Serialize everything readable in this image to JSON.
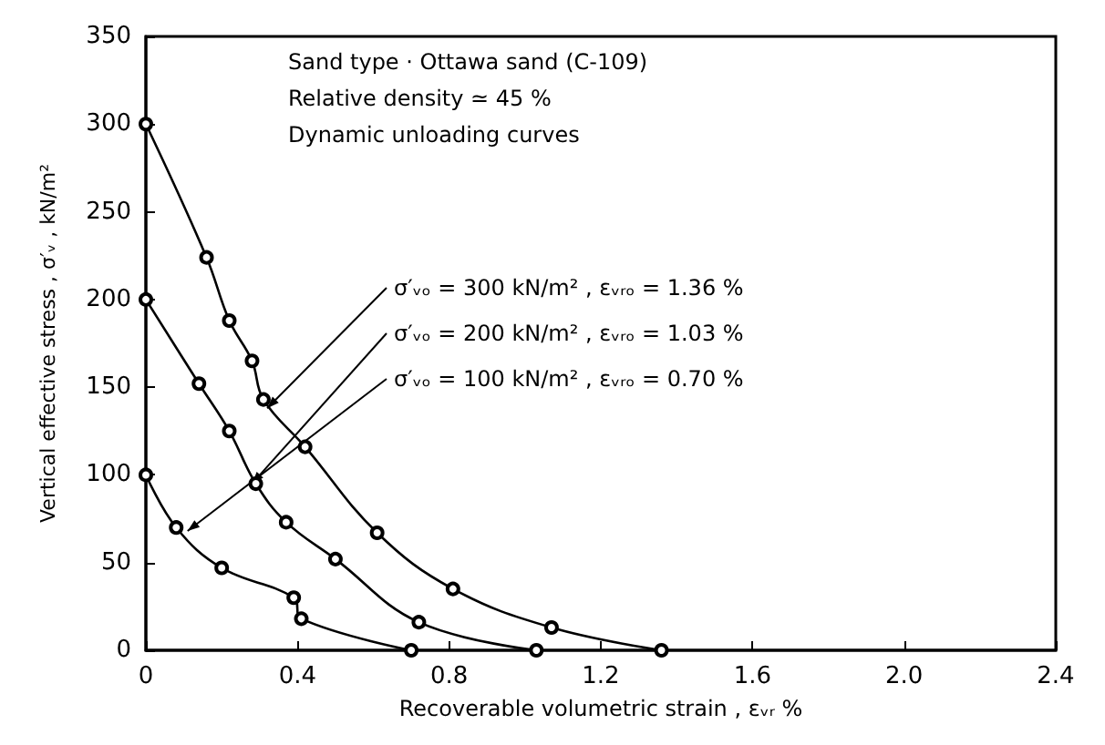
{
  "chart_data": {
    "type": "line",
    "xlabel": "Recoverable volumetric strain , εᵥᵣ %",
    "ylabel": "Vertical effective stress , σ′ᵥ , kN/m²",
    "xlim": [
      0,
      2.4
    ],
    "xticks": [
      {
        "value": 0,
        "label": "0"
      },
      0.4,
      0.8,
      1.2,
      1.6,
      {
        "value": 2,
        "label": "2.0"
      },
      2.4
    ],
    "ylim": [
      0,
      350
    ],
    "yticks": [
      0,
      50,
      100,
      150,
      200,
      250,
      300,
      350
    ],
    "series": [
      {
        "color": "#000000",
        "x": [
          0,
          0.16,
          0.22,
          0.28,
          0.31,
          0.42,
          0.61,
          0.81,
          1.07,
          1.36
        ],
        "values": [
          300,
          224,
          188,
          165,
          143,
          116,
          67,
          35,
          13,
          0
        ]
      },
      {
        "color": "#000000",
        "x": [
          0,
          0.14,
          0.22,
          0.29,
          0.37,
          0.5,
          0.72,
          1.03
        ],
        "values": [
          200,
          152,
          125,
          95,
          73,
          52,
          16,
          0
        ]
      },
      {
        "color": "#000000",
        "x": [
          0,
          0.08,
          0.2,
          0.39,
          0.41,
          0.7
        ],
        "values": [
          100,
          70,
          47,
          30,
          18,
          0
        ]
      }
    ],
    "annotations": [
      "Sand type · Ottawa sand (C-109)",
      "Relative density ≃ 45 %",
      "Dynamic unloading curves",
      {
        "text": "σ′ᵥₒ = 300 kN/m² , εᵥᵣₒ = 1.36 %",
        "x": 0.32,
        "y": 138
      },
      {
        "text": "σ′ᵥₒ = 200 kN/m² , εᵥᵣₒ = 1.03 %",
        "x": 0.28,
        "y": 95
      },
      {
        "text": "σ′ᵥₒ = 100 kN/m² , εᵥᵣₒ = 0.70 %",
        "x": 0.11,
        "y": 68
      }
    ],
    "marker": "circle",
    "line_style": "solid"
  }
}
